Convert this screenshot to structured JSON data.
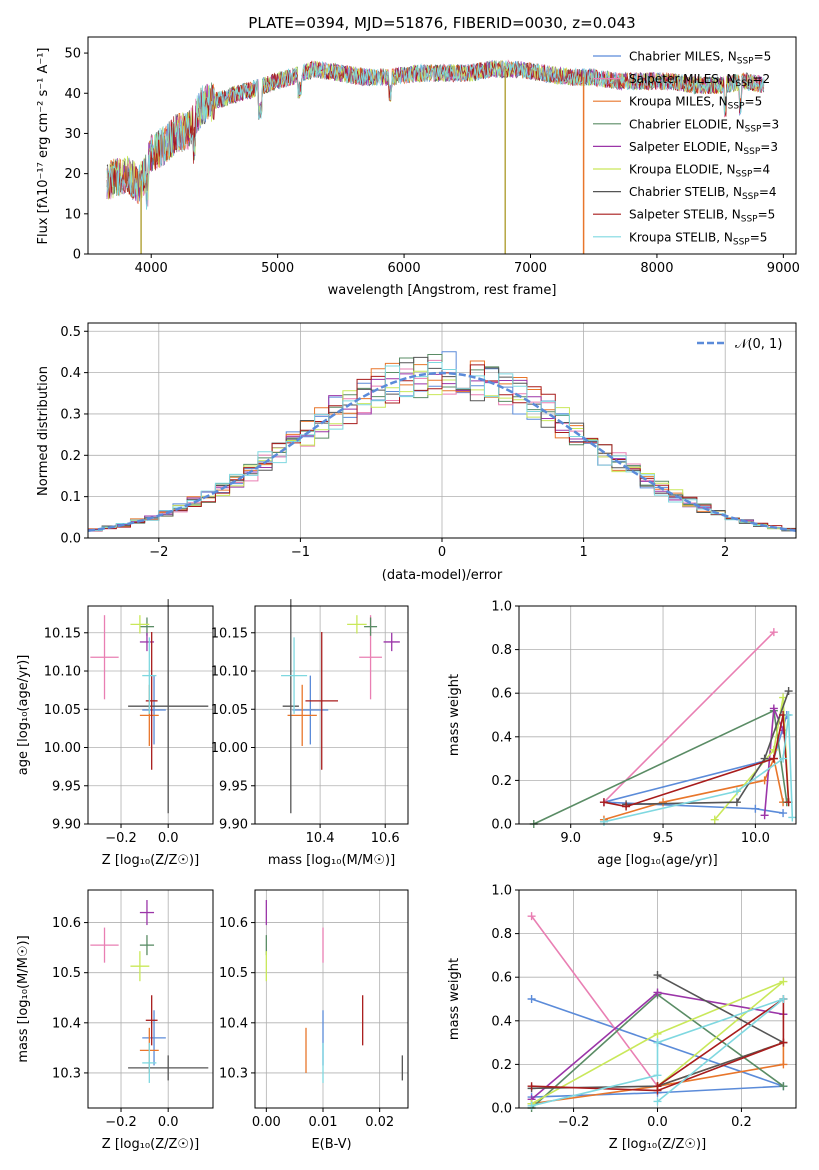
{
  "chart_data": [
    {
      "id": "spectrum",
      "type": "line",
      "title": "PLATE=0394, MJD=51876, FIBERID=0030, z=0.043",
      "xlabel": "wavelength [Angstrom, rest frame]",
      "ylabel": "Flux [fλ10⁻¹⁷ erg cm⁻² s⁻¹ A⁻¹]",
      "xlim": [
        3500,
        9100
      ],
      "ylim": [
        0,
        54
      ],
      "xticks": [
        4000,
        5000,
        6000,
        7000,
        8000,
        9000
      ],
      "yticks": [
        0,
        10,
        20,
        30,
        40,
        50
      ],
      "legend_position": "upper-right",
      "drops": [
        {
          "x": 3920,
          "color": "#b5a642"
        },
        {
          "x": 6800,
          "color": "#b5a642"
        },
        {
          "x": 7420,
          "color": "#e8762b"
        }
      ],
      "envelope": {
        "x": [
          3650,
          3800,
          3900,
          3950,
          4000,
          4100,
          4200,
          4300,
          4400,
          4500,
          4700,
          4900,
          5100,
          5300,
          5500,
          5700,
          5900,
          6100,
          6300,
          6500,
          6700,
          6900,
          7100,
          7300,
          7500,
          7700,
          7900,
          8100,
          8300,
          8500,
          8700,
          8850
        ],
        "y": [
          18,
          20,
          17,
          20,
          25,
          27,
          30,
          31,
          37,
          38,
          40,
          42,
          44,
          46,
          45,
          44,
          44,
          45,
          45,
          45,
          46,
          46,
          45,
          44,
          44,
          43,
          43,
          43,
          42,
          42,
          43,
          42
        ]
      }
    },
    {
      "id": "residuals",
      "type": "line",
      "xlabel": "(data-model)/error",
      "ylabel": "Normed distribution",
      "xlim": [
        -2.5,
        2.5
      ],
      "ylim": [
        0,
        0.52
      ],
      "xticks": [
        -2,
        -1,
        0,
        1,
        2
      ],
      "yticks": [
        0,
        0.1,
        0.2,
        0.3,
        0.4,
        0.5
      ],
      "grid": true,
      "legend_position": "upper-right",
      "reference_label": "𝒩(0, 1)",
      "reference_color": "#5b8bd9"
    },
    {
      "id": "age-vs-Z",
      "type": "scatter",
      "xlabel": "Z [log₁₀(Z/Z☉)]",
      "ylabel": "age  [log₁₀(age/yr)]",
      "xlim": [
        -0.34,
        0.19
      ],
      "ylim": [
        9.9,
        10.185
      ],
      "xticks": [
        -0.2,
        0.0
      ],
      "yticks": [
        9.9,
        9.95,
        10.0,
        10.05,
        10.1,
        10.15
      ],
      "grid": true
    },
    {
      "id": "age-vs-mass",
      "type": "scatter",
      "xlabel": "mass [log₁₀(M/M☉)]",
      "xlim": [
        10.2,
        10.67
      ],
      "ylim": [
        9.9,
        10.185
      ],
      "xticks": [
        10.4,
        10.6
      ],
      "yticks": [
        9.9,
        9.95,
        10.0,
        10.05,
        10.1,
        10.15
      ],
      "grid": true
    },
    {
      "id": "weight-vs-age",
      "type": "line",
      "xlabel": "age  [log₁₀(age/yr)]",
      "ylabel": "mass weight",
      "xlim": [
        8.72,
        10.22
      ],
      "ylim": [
        0,
        1.0
      ],
      "xticks": [
        9.0,
        9.5,
        10.0
      ],
      "yticks": [
        0,
        0.2,
        0.4,
        0.6,
        0.8,
        1.0
      ],
      "grid": true
    },
    {
      "id": "mass-vs-Z",
      "type": "scatter",
      "xlabel": "Z [log₁₀(Z/Z☉)]",
      "ylabel": "mass [log₁₀(M/M☉)]",
      "xlim": [
        -0.34,
        0.19
      ],
      "ylim": [
        10.23,
        10.665
      ],
      "xticks": [
        -0.2,
        0.0
      ],
      "yticks": [
        10.3,
        10.4,
        10.5,
        10.6
      ],
      "grid": true
    },
    {
      "id": "mass-vs-EBV",
      "type": "scatter",
      "xlabel": "E(B-V)",
      "xlim": [
        -0.002,
        0.025
      ],
      "ylim": [
        10.23,
        10.665
      ],
      "xticks": [
        0.0,
        0.01,
        0.02
      ],
      "yticks": [
        10.3,
        10.4,
        10.5,
        10.6
      ],
      "grid": true
    },
    {
      "id": "weight-vs-Z",
      "type": "line",
      "xlabel": "Z [log₁₀(Z/Z☉)]",
      "ylabel": "mass weight",
      "xlim": [
        -0.33,
        0.33
      ],
      "ylim": [
        0,
        1.0
      ],
      "xticks": [
        -0.2,
        0.0,
        0.2
      ],
      "yticks": [
        0,
        0.2,
        0.4,
        0.6,
        0.8,
        1.0
      ],
      "grid": true
    }
  ],
  "models": [
    {
      "name": "Chabrier MILES, N",
      "sub": "SSP",
      "val": "=5",
      "color": "#5b8bd9",
      "Z": -0.06,
      "Z_err": 0.05,
      "age": 10.049,
      "age_err": 0.045,
      "mass": 10.37,
      "mass_err": 0.055,
      "ebv": 0.01,
      "ssp_age": [
        10.15,
        10.0,
        9.18,
        10.1,
        10.17
      ],
      "ssp_Z": [
        -0.3,
        0.0,
        0.3,
        0.0,
        -0.3
      ],
      "weight": [
        0.05,
        0.07,
        0.1,
        0.3,
        0.5
      ]
    },
    {
      "name": "Salpeter MILES, N",
      "sub": "SSP",
      "val": "=2",
      "color": "#e97fb3",
      "Z": -0.27,
      "Z_err": 0.06,
      "age": 10.118,
      "age_err": 0.055,
      "mass": 10.555,
      "mass_err": 0.035,
      "ebv": 0.01,
      "ssp_age": [
        10.1,
        9.18
      ],
      "ssp_Z": [
        -0.3,
        0.0
      ],
      "weight": [
        0.88,
        0.1
      ]
    },
    {
      "name": "Kroupa MILES, N",
      "sub": "SSP",
      "val": "=5",
      "color": "#e8762b",
      "Z": -0.08,
      "Z_err": 0.04,
      "age": 10.042,
      "age_err": 0.04,
      "mass": 10.345,
      "mass_err": 0.045,
      "ebv": 0.007,
      "ssp_age": [
        9.18,
        9.5,
        10.05,
        10.1,
        10.15
      ],
      "ssp_Z": [
        -0.3,
        0.0,
        0.3,
        0.3,
        0.0
      ],
      "weight": [
        0.02,
        0.1,
        0.2,
        0.3,
        0.1
      ]
    },
    {
      "name": "Chabrier ELODIE, N",
      "sub": "SSP",
      "val": "=3",
      "color": "#5a8c65",
      "Z": -0.09,
      "Z_err": 0.03,
      "age": 10.158,
      "age_err": 0.012,
      "mass": 10.555,
      "mass_err": 0.02,
      "ebv": 0.0,
      "ssp_age": [
        8.8,
        10.1,
        10.17
      ],
      "ssp_Z": [
        -0.3,
        0.0,
        0.3
      ],
      "weight": [
        0.0,
        0.52,
        0.1
      ]
    },
    {
      "name": "Salpeter ELODIE, N",
      "sub": "SSP",
      "val": "=3",
      "color": "#9b35a8",
      "Z": -0.09,
      "Z_err": 0.03,
      "age": 10.138,
      "age_err": 0.012,
      "mass": 10.62,
      "mass_err": 0.025,
      "ebv": 0.0,
      "ssp_age": [
        10.05,
        10.1,
        10.15
      ],
      "ssp_Z": [
        -0.3,
        0.0,
        0.3
      ],
      "weight": [
        0.04,
        0.53,
        0.43
      ]
    },
    {
      "name": "Kroupa ELODIE, N",
      "sub": "SSP",
      "val": "=4",
      "color": "#c9e85a",
      "Z": -0.12,
      "Z_err": 0.04,
      "age": 10.161,
      "age_err": 0.012,
      "mass": 10.513,
      "mass_err": 0.03,
      "ebv": 0.0,
      "ssp_age": [
        9.78,
        10.1,
        10.15,
        10.18
      ],
      "ssp_Z": [
        -0.3,
        0.0,
        0.3,
        0.0
      ],
      "weight": [
        0.02,
        0.34,
        0.58,
        0.1
      ]
    },
    {
      "name": "Chabrier STELIB, N",
      "sub": "SSP",
      "val": "=4",
      "color": "#555555",
      "Z": 0.0,
      "Z_err": 0.17,
      "age": 10.054,
      "age_err": 0.14,
      "mass": 10.31,
      "mass_err": 0.025,
      "ebv": 0.024,
      "ssp_age": [
        9.3,
        9.9,
        10.05,
        10.18
      ],
      "ssp_Z": [
        -0.3,
        0.0,
        0.3,
        0.0
      ],
      "weight": [
        0.09,
        0.1,
        0.3,
        0.61
      ]
    },
    {
      "name": "Salpeter STELIB, N",
      "sub": "SSP",
      "val": "=5",
      "color": "#a81c1c",
      "Z": -0.07,
      "Z_err": 0.025,
      "age": 10.061,
      "age_err": 0.09,
      "mass": 10.405,
      "mass_err": 0.05,
      "ebv": 0.017,
      "ssp_age": [
        9.18,
        9.3,
        10.1,
        10.15,
        10.18
      ],
      "ssp_Z": [
        -0.3,
        0.0,
        0.3,
        0.3,
        0.0
      ],
      "weight": [
        0.1,
        0.08,
        0.3,
        0.5,
        0.1
      ]
    },
    {
      "name": "Kroupa STELIB, N",
      "sub": "SSP",
      "val": "=5",
      "color": "#7fd8e0",
      "Z": -0.08,
      "Z_err": 0.03,
      "age": 10.094,
      "age_err": 0.05,
      "mass": 10.32,
      "mass_err": 0.04,
      "ebv": 0.01,
      "ssp_age": [
        9.18,
        9.9,
        10.15,
        10.18,
        10.2
      ],
      "ssp_Z": [
        -0.3,
        0.0,
        0.0,
        0.3,
        0.0
      ],
      "weight": [
        0.01,
        0.15,
        0.3,
        0.5,
        0.03
      ]
    }
  ]
}
